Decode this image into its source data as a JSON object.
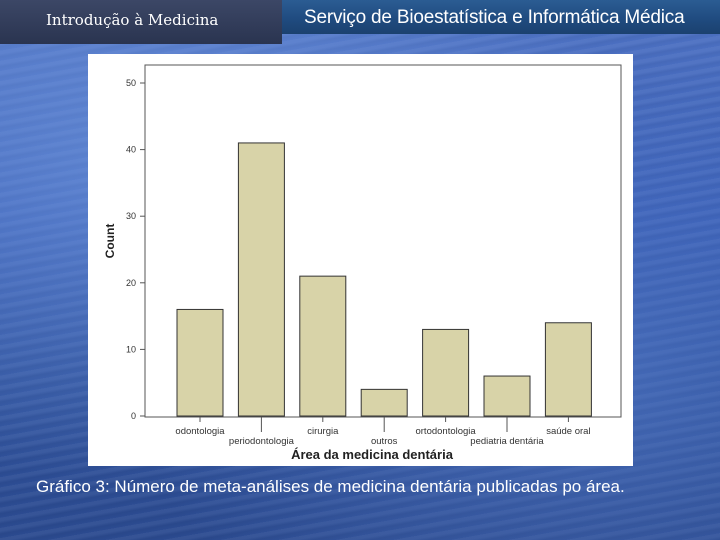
{
  "header": {
    "left_title": "Introdução à Medicina",
    "right_title": "Serviço de Bioestatística e Informática Médica"
  },
  "caption": "Gráfico 3: Número de meta-análises de medicina dentária publicadas po área.",
  "colors": {
    "bar_fill": "#d8d3a8",
    "bar_stroke": "#333333"
  },
  "chart_data": {
    "type": "bar",
    "categories": [
      "odontologia",
      "periodontologia",
      "cirurgia",
      "outros",
      "ortodontologia",
      "pediatria dentária",
      "saúde oral"
    ],
    "values": [
      16,
      41,
      21,
      4,
      13,
      6,
      14
    ],
    "xlabel": "Área da medicina dentária",
    "ylabel": "Count",
    "ylim": [
      0,
      50
    ],
    "yticks": [
      "0",
      "10",
      "20",
      "30",
      "40",
      "50"
    ],
    "grid": false
  }
}
